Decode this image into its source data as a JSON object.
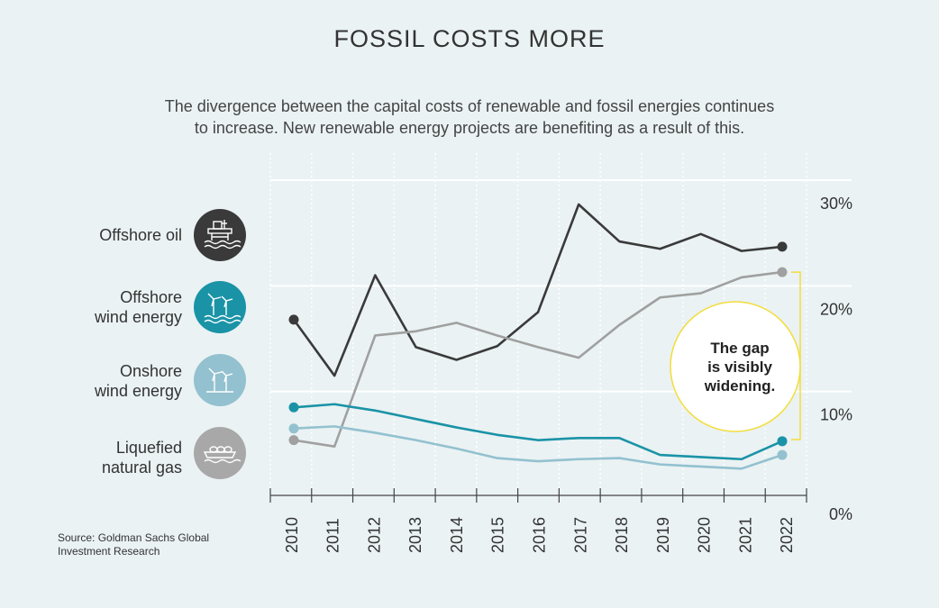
{
  "title": "FOSSIL COSTS MORE",
  "subtitle_line1": "The divergence between the capital costs of renewable and fossil energies continues",
  "subtitle_line2": "to increase. New renewable energy projects are benefiting as a result of this.",
  "source_line1": "Source: Goldman Sachs Global",
  "source_line2": "Investment Research",
  "legend": [
    {
      "line1": "Offshore oil",
      "line2": "",
      "icon": "oil-platform-icon",
      "color": "#3a3a3a"
    },
    {
      "line1": "Offshore",
      "line2": "wind energy",
      "icon": "offshore-wind-icon",
      "color": "#1a93a6"
    },
    {
      "line1": "Onshore",
      "line2": "wind energy",
      "icon": "onshore-wind-icon",
      "color": "#93c1cf"
    },
    {
      "line1": "Liquefied",
      "line2": "natural gas",
      "icon": "lng-ship-icon",
      "color": "#a8a8a8"
    }
  ],
  "annotation": {
    "line1": "The gap",
    "line2": "is visibly",
    "line3": "widening.",
    "color": "#f3dd3a"
  },
  "chart_data": {
    "type": "line",
    "title": "FOSSIL COSTS MORE",
    "x": [
      "2010",
      "2011",
      "2012",
      "2013",
      "2014",
      "2015",
      "2016",
      "2017",
      "2018",
      "2019",
      "2020",
      "2021",
      "2022"
    ],
    "y_ticks": [
      "0%",
      "10%",
      "20%",
      "30%"
    ],
    "ylim": [
      0,
      30
    ],
    "grid": true,
    "legend_position": "left",
    "series": [
      {
        "name": "Offshore oil",
        "color": "#3a3a3a",
        "values": [
          16.8,
          11.5,
          21.0,
          14.2,
          13.0,
          14.3,
          17.5,
          27.7,
          24.2,
          23.5,
          24.9,
          23.3,
          23.7
        ]
      },
      {
        "name": "Liquefied natural gas",
        "color": "#a0a0a0",
        "values": [
          5.4,
          4.8,
          15.3,
          15.7,
          16.5,
          15.3,
          14.2,
          13.2,
          16.3,
          18.9,
          19.3,
          20.8,
          21.3
        ]
      },
      {
        "name": "Offshore wind energy",
        "color": "#1a93a6",
        "values": [
          8.5,
          8.8,
          8.2,
          7.4,
          6.6,
          5.9,
          5.4,
          5.6,
          5.6,
          4.0,
          3.8,
          3.6,
          5.3
        ]
      },
      {
        "name": "Onshore wind energy",
        "color": "#93c1cf",
        "values": [
          6.5,
          6.7,
          6.1,
          5.4,
          4.6,
          3.7,
          3.4,
          3.6,
          3.7,
          3.1,
          2.9,
          2.7,
          4.0
        ]
      }
    ]
  }
}
